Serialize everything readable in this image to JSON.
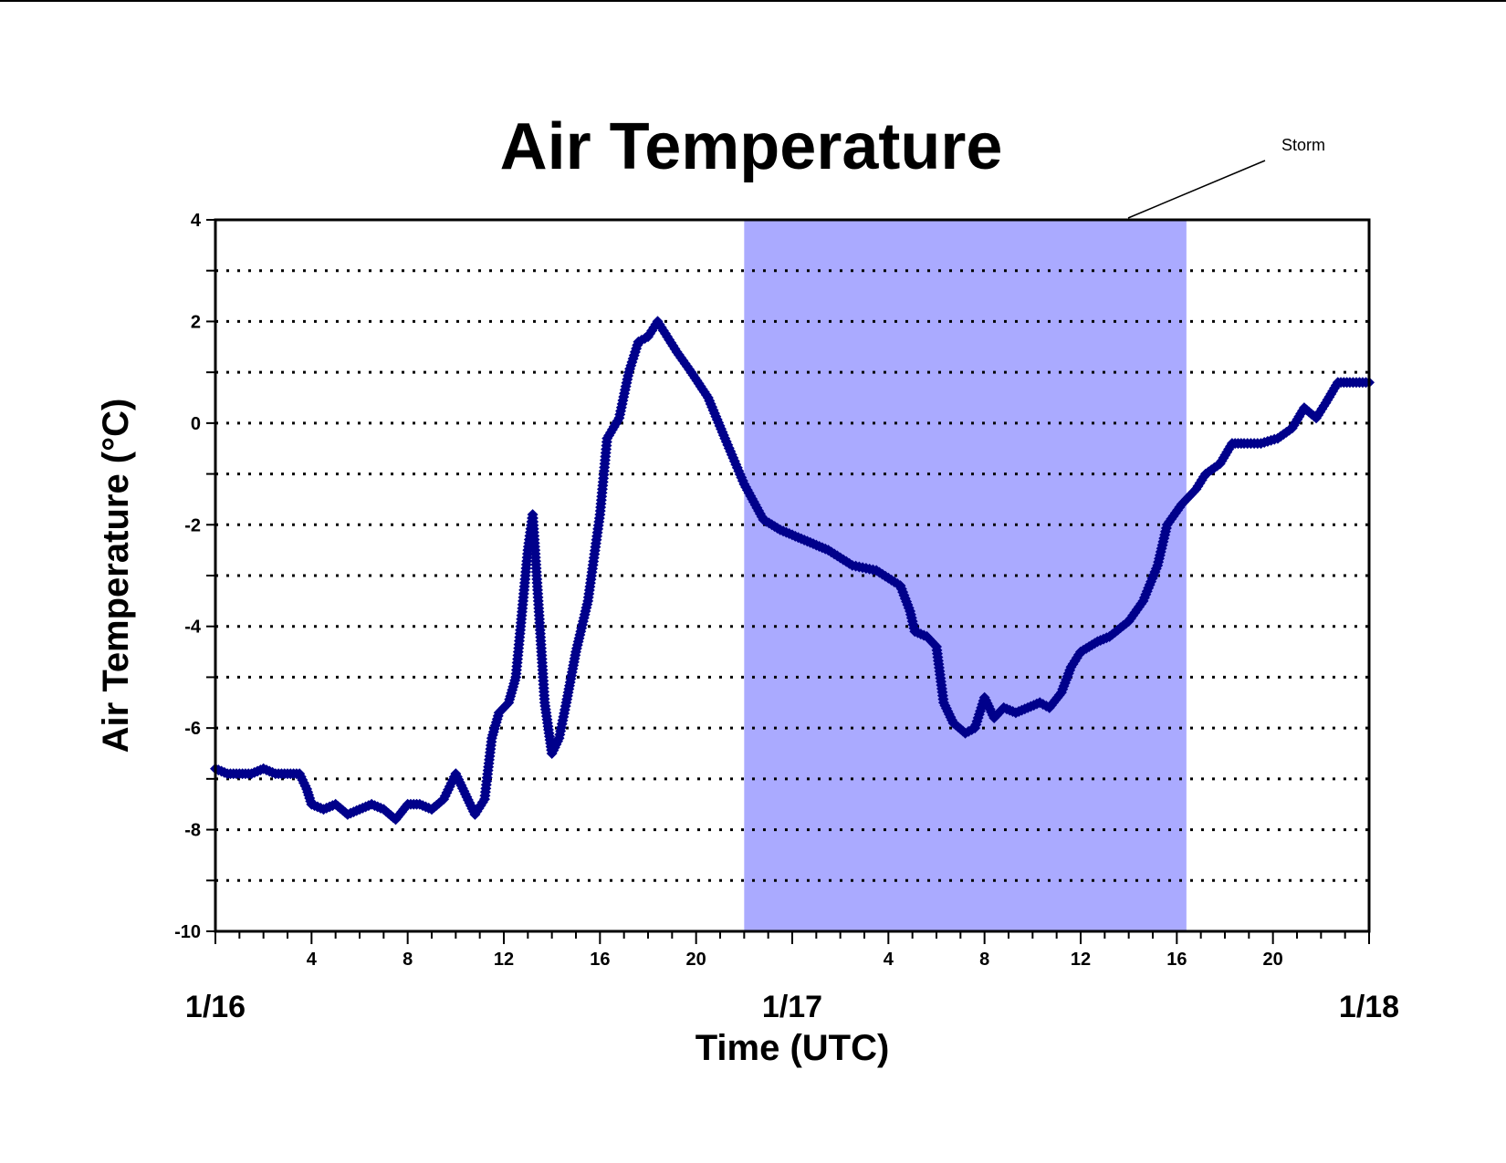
{
  "chart_data": {
    "type": "scatter",
    "title": "Air Temperature",
    "xlabel": "Time (UTC)",
    "ylabel": "Air Temperature (°C)",
    "ylim": [
      -10,
      4
    ],
    "yticks": [
      "4",
      "2",
      "0",
      "-2",
      "-4",
      "-6",
      "-8",
      "-10"
    ],
    "xlim_hours": [
      0,
      48
    ],
    "x_hour_ticks": [
      {
        "h": 4,
        "label": "4"
      },
      {
        "h": 8,
        "label": "8"
      },
      {
        "h": 12,
        "label": "12"
      },
      {
        "h": 16,
        "label": "16"
      },
      {
        "h": 20,
        "label": "20"
      },
      {
        "h": 28,
        "label": "4"
      },
      {
        "h": 32,
        "label": "8"
      },
      {
        "h": 36,
        "label": "12"
      },
      {
        "h": 40,
        "label": "16"
      },
      {
        "h": 44,
        "label": "20"
      }
    ],
    "x_day_labels": [
      {
        "h": 0,
        "label": "1/16"
      },
      {
        "h": 24,
        "label": "1/17"
      },
      {
        "h": 48,
        "label": "1/18"
      }
    ],
    "grid": "dotted horizontal lines every 1 °C",
    "series_color": "#00008B",
    "marker": "diamond",
    "shaded_region": {
      "label": "Storm",
      "x_from": 22,
      "x_to": 40.4,
      "color": "#AAAAFF"
    },
    "series": [
      {
        "points": [
          [
            0,
            -6.8
          ],
          [
            0.5,
            -6.9
          ],
          [
            1,
            -6.9
          ],
          [
            1.5,
            -6.9
          ],
          [
            2,
            -6.8
          ],
          [
            2.5,
            -6.9
          ],
          [
            3,
            -6.9
          ],
          [
            3.5,
            -6.9
          ],
          [
            3.8,
            -7.2
          ],
          [
            4,
            -7.5
          ],
          [
            4.5,
            -7.6
          ],
          [
            5,
            -7.5
          ],
          [
            5.5,
            -7.7
          ],
          [
            6,
            -7.6
          ],
          [
            6.5,
            -7.5
          ],
          [
            7,
            -7.6
          ],
          [
            7.5,
            -7.8
          ],
          [
            8,
            -7.5
          ],
          [
            8.5,
            -7.5
          ],
          [
            9,
            -7.6
          ],
          [
            9.5,
            -7.4
          ],
          [
            10,
            -6.9
          ],
          [
            10.4,
            -7.3
          ],
          [
            10.8,
            -7.7
          ],
          [
            11.2,
            -7.4
          ],
          [
            11.5,
            -6.2
          ],
          [
            11.8,
            -5.7
          ],
          [
            12.2,
            -5.5
          ],
          [
            12.5,
            -5.0
          ],
          [
            12.8,
            -3.5
          ],
          [
            13,
            -2.5
          ],
          [
            13.2,
            -1.8
          ],
          [
            13.3,
            -2.5
          ],
          [
            13.5,
            -4.0
          ],
          [
            13.7,
            -5.5
          ],
          [
            14,
            -6.5
          ],
          [
            14.3,
            -6.2
          ],
          [
            14.6,
            -5.5
          ],
          [
            15,
            -4.5
          ],
          [
            15.5,
            -3.5
          ],
          [
            16,
            -1.8
          ],
          [
            16.3,
            -0.3
          ],
          [
            16.8,
            0.1
          ],
          [
            17.2,
            1.0
          ],
          [
            17.6,
            1.6
          ],
          [
            18,
            1.7
          ],
          [
            18.4,
            2.0
          ],
          [
            18.8,
            1.7
          ],
          [
            19.2,
            1.4
          ],
          [
            19.8,
            1.0
          ],
          [
            20.5,
            0.5
          ],
          [
            21.2,
            -0.3
          ],
          [
            22,
            -1.2
          ],
          [
            22.8,
            -1.9
          ],
          [
            23.5,
            -2.1
          ],
          [
            24.5,
            -2.3
          ],
          [
            25.5,
            -2.5
          ],
          [
            26.5,
            -2.8
          ],
          [
            27.5,
            -2.9
          ],
          [
            28.5,
            -3.2
          ],
          [
            28.9,
            -3.7
          ],
          [
            29.1,
            -4.1
          ],
          [
            29.6,
            -4.2
          ],
          [
            30,
            -4.4
          ],
          [
            30.3,
            -5.5
          ],
          [
            30.7,
            -5.9
          ],
          [
            31.2,
            -6.1
          ],
          [
            31.6,
            -6.0
          ],
          [
            32,
            -5.4
          ],
          [
            32.4,
            -5.8
          ],
          [
            32.8,
            -5.6
          ],
          [
            33.3,
            -5.7
          ],
          [
            33.8,
            -5.6
          ],
          [
            34.3,
            -5.5
          ],
          [
            34.7,
            -5.6
          ],
          [
            35.2,
            -5.3
          ],
          [
            35.6,
            -4.8
          ],
          [
            36,
            -4.5
          ],
          [
            36.7,
            -4.3
          ],
          [
            37.2,
            -4.2
          ],
          [
            38,
            -3.9
          ],
          [
            38.6,
            -3.5
          ],
          [
            39.2,
            -2.8
          ],
          [
            39.6,
            -2.0
          ],
          [
            40.2,
            -1.6
          ],
          [
            40.8,
            -1.3
          ],
          [
            41.2,
            -1.0
          ],
          [
            41.8,
            -0.8
          ],
          [
            42.3,
            -0.4
          ],
          [
            42.8,
            -0.4
          ],
          [
            43.5,
            -0.4
          ],
          [
            44.2,
            -0.3
          ],
          [
            44.8,
            -0.1
          ],
          [
            45.3,
            0.3
          ],
          [
            45.8,
            0.1
          ],
          [
            46.2,
            0.4
          ],
          [
            46.7,
            0.8
          ],
          [
            47.2,
            0.8
          ],
          [
            48,
            0.8
          ]
        ]
      }
    ]
  }
}
